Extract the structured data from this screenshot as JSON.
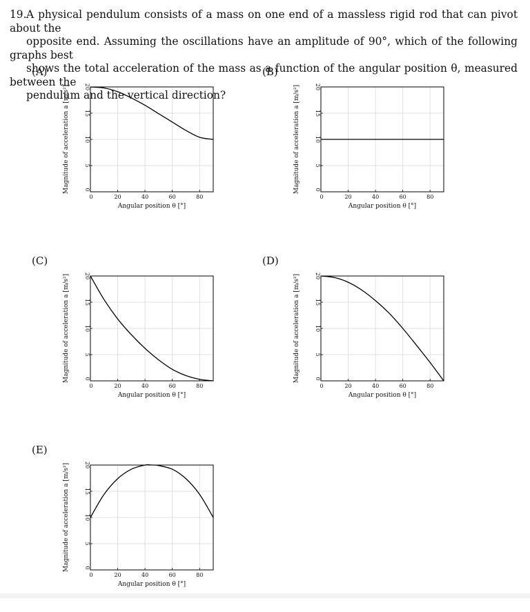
{
  "question": {
    "number": "19.",
    "lines": [
      "A physical pendulum consists of a mass on one end of a massless rigid rod that can pivot about the",
      "opposite end.  Assuming the oscillations have an amplitude of 90°, which of the following graphs best",
      "shows the total acceleration of the mass as a function of the angular position θ, measured between the",
      "pendulum and the vertical direction?"
    ]
  },
  "charts": [
    {
      "letter": "(A)",
      "type": "line",
      "xlabel": "Angular position θ [°]",
      "ylabel": "Magnitude of acceleration a [m/s²]",
      "xlim": [
        0,
        90
      ],
      "ylim": [
        0,
        20
      ],
      "xticks": [
        "0",
        "20",
        "40",
        "60",
        "80"
      ],
      "yticks": [
        "0",
        "5",
        "10",
        "15",
        "20"
      ],
      "grid": true,
      "x": [
        0,
        10,
        20,
        30,
        40,
        50,
        60,
        70,
        80,
        90
      ],
      "y": [
        20,
        19.8,
        19.1,
        17.9,
        16.5,
        14.9,
        13.3,
        11.7,
        10.4,
        10
      ]
    },
    {
      "letter": "(B)",
      "type": "line",
      "xlabel": "Angular position θ [°]",
      "ylabel": "Magnitude of acceleration a [m/s²]",
      "xlim": [
        0,
        90
      ],
      "ylim": [
        0,
        20
      ],
      "xticks": [
        "0",
        "20",
        "40",
        "60",
        "80"
      ],
      "yticks": [
        "0",
        "5",
        "10",
        "15",
        "20"
      ],
      "grid": true,
      "x": [
        0,
        90
      ],
      "y": [
        10,
        10
      ]
    },
    {
      "letter": "(C)",
      "type": "line",
      "xlabel": "Angular position θ [°]",
      "ylabel": "Magnitude of acceleration a [m/s²]",
      "xlim": [
        0,
        90
      ],
      "ylim": [
        0,
        20
      ],
      "xticks": [
        "0",
        "20",
        "40",
        "60",
        "80"
      ],
      "yticks": [
        "0",
        "5",
        "10",
        "15",
        "20"
      ],
      "grid": true,
      "x": [
        0,
        10,
        20,
        30,
        40,
        50,
        60,
        70,
        80,
        90
      ],
      "y": [
        20,
        15.5,
        11.8,
        8.8,
        6.2,
        4.0,
        2.2,
        1.0,
        0.3,
        0
      ]
    },
    {
      "letter": "(D)",
      "type": "line",
      "xlabel": "Angular position θ [°]",
      "ylabel": "Magnitude of acceleration a [m/s²]",
      "xlim": [
        0,
        90
      ],
      "ylim": [
        0,
        20
      ],
      "xticks": [
        "0",
        "20",
        "40",
        "60",
        "80"
      ],
      "yticks": [
        "0",
        "5",
        "10",
        "15",
        "20"
      ],
      "grid": true,
      "x": [
        0,
        10,
        20,
        30,
        40,
        50,
        60,
        70,
        80,
        90
      ],
      "y": [
        20,
        19.7,
        18.8,
        17.3,
        15.3,
        12.9,
        10.0,
        6.8,
        3.5,
        0
      ]
    },
    {
      "letter": "(E)",
      "type": "line",
      "xlabel": "Angular position θ [°]",
      "ylabel": "Magnitude of acceleration a [m/s²]",
      "xlim": [
        0,
        90
      ],
      "ylim": [
        0,
        20
      ],
      "xticks": [
        "0",
        "20",
        "40",
        "60",
        "80"
      ],
      "yticks": [
        "0",
        "5",
        "10",
        "15",
        "20"
      ],
      "grid": true,
      "x": [
        0,
        10,
        20,
        30,
        40,
        45,
        50,
        60,
        70,
        80,
        90
      ],
      "y": [
        10,
        14.4,
        17.4,
        19.2,
        20,
        20,
        19.9,
        19.2,
        17.4,
        14.4,
        10
      ]
    }
  ]
}
